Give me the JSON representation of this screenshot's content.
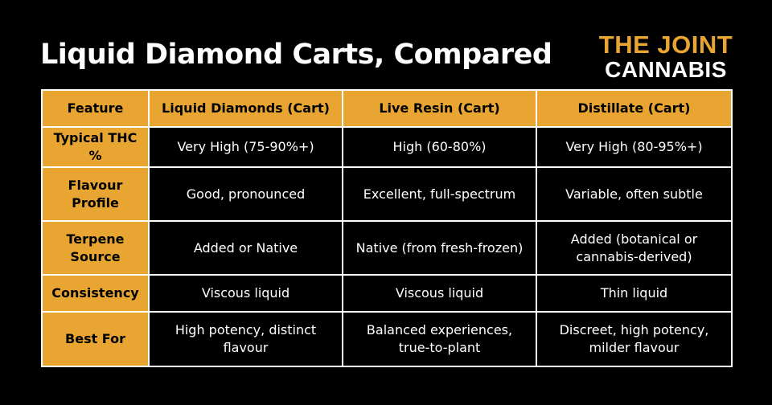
{
  "title": "Liquid Diamond Carts, Compared",
  "logo": {
    "line1": "THE JOINT",
    "line2": "CANNABIS"
  },
  "colors": {
    "accent": "#e8a532",
    "background": "#000000",
    "text": "#ffffff"
  },
  "table": {
    "headers": [
      "Feature",
      "Liquid Diamonds (Cart)",
      "Live Resin (Cart)",
      "Distillate (Cart)"
    ],
    "rows": [
      [
        "Typical THC %",
        "Very High (75-90%+)",
        "High (60-80%)",
        "Very High (80-95%+)"
      ],
      [
        "Flavour Profile",
        "Good, pronounced",
        "Excellent, full-spectrum",
        "Variable, often subtle"
      ],
      [
        "Terpene Source",
        "Added or Native",
        "Native (from fresh-frozen)",
        "Added (botanical or cannabis-derived)"
      ],
      [
        "Consistency",
        "Viscous liquid",
        "Viscous liquid",
        "Thin liquid"
      ],
      [
        "Best For",
        "High potency, distinct flavour",
        "Balanced experiences, true-to-plant",
        "Discreet, high potency, milder flavour"
      ]
    ]
  }
}
